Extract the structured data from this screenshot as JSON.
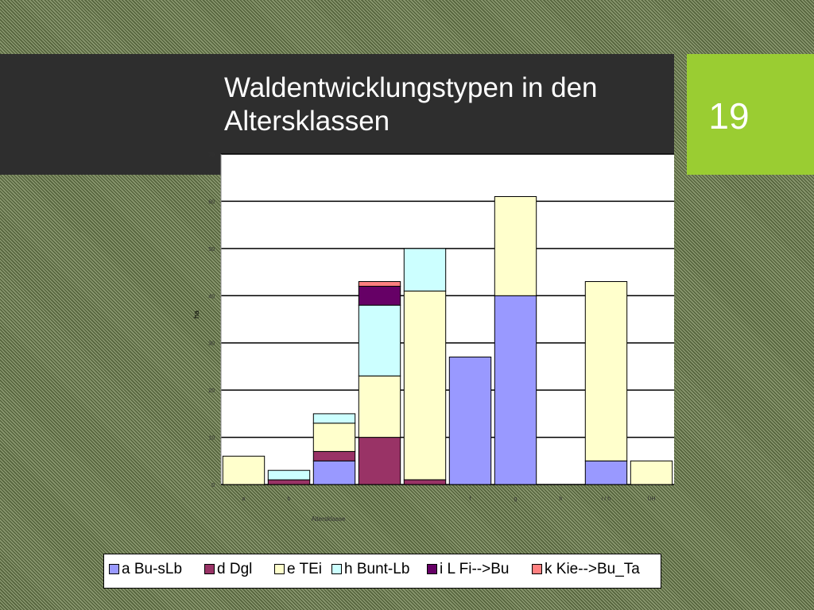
{
  "slide": {
    "title": "Waldentwicklungstypen in den Altersklassen",
    "page_number": "19"
  },
  "chart_data": {
    "type": "bar",
    "stacked": true,
    "title": "",
    "xlabel": "Altersklasse",
    "ylabel": "ha",
    "ylim": [
      0,
      70
    ],
    "yticks": [
      0,
      10,
      20,
      30,
      40,
      50,
      60,
      70
    ],
    "grid": true,
    "legend_position": "bottom",
    "categories": [
      "I",
      "II",
      "III",
      "IV",
      "V",
      "VI",
      "VII",
      "VIII",
      "IX",
      "X"
    ],
    "category_labels": [
      "a",
      "b",
      "",
      "",
      "",
      "f",
      "g",
      "h",
      "i / h",
      "ÜH"
    ],
    "series": [
      {
        "name": "a Bu-sLb",
        "color": "#9999ff",
        "values": [
          0,
          0,
          5,
          0,
          0,
          27,
          40,
          0,
          5,
          0
        ]
      },
      {
        "name": "d Dgl",
        "color": "#993366",
        "values": [
          0,
          1,
          2,
          10,
          1,
          0,
          0,
          0,
          0,
          0
        ]
      },
      {
        "name": "e TEi",
        "color": "#ffffcc",
        "values": [
          6,
          0,
          6,
          13,
          40,
          0,
          21,
          0,
          38,
          5
        ]
      },
      {
        "name": "h Bunt-Lb",
        "color": "#ccffff",
        "values": [
          0,
          2,
          2,
          15,
          9,
          0,
          0,
          0,
          0,
          0
        ]
      },
      {
        "name": "i L Fi-->Bu",
        "color": "#660066",
        "values": [
          0,
          0,
          0,
          4,
          0,
          0,
          0,
          0,
          0,
          0
        ]
      },
      {
        "name": "k Kie-->Bu_Ta",
        "color": "#ff8080",
        "values": [
          0,
          0,
          0,
          1,
          0,
          0,
          0,
          0,
          0,
          0
        ]
      }
    ]
  }
}
